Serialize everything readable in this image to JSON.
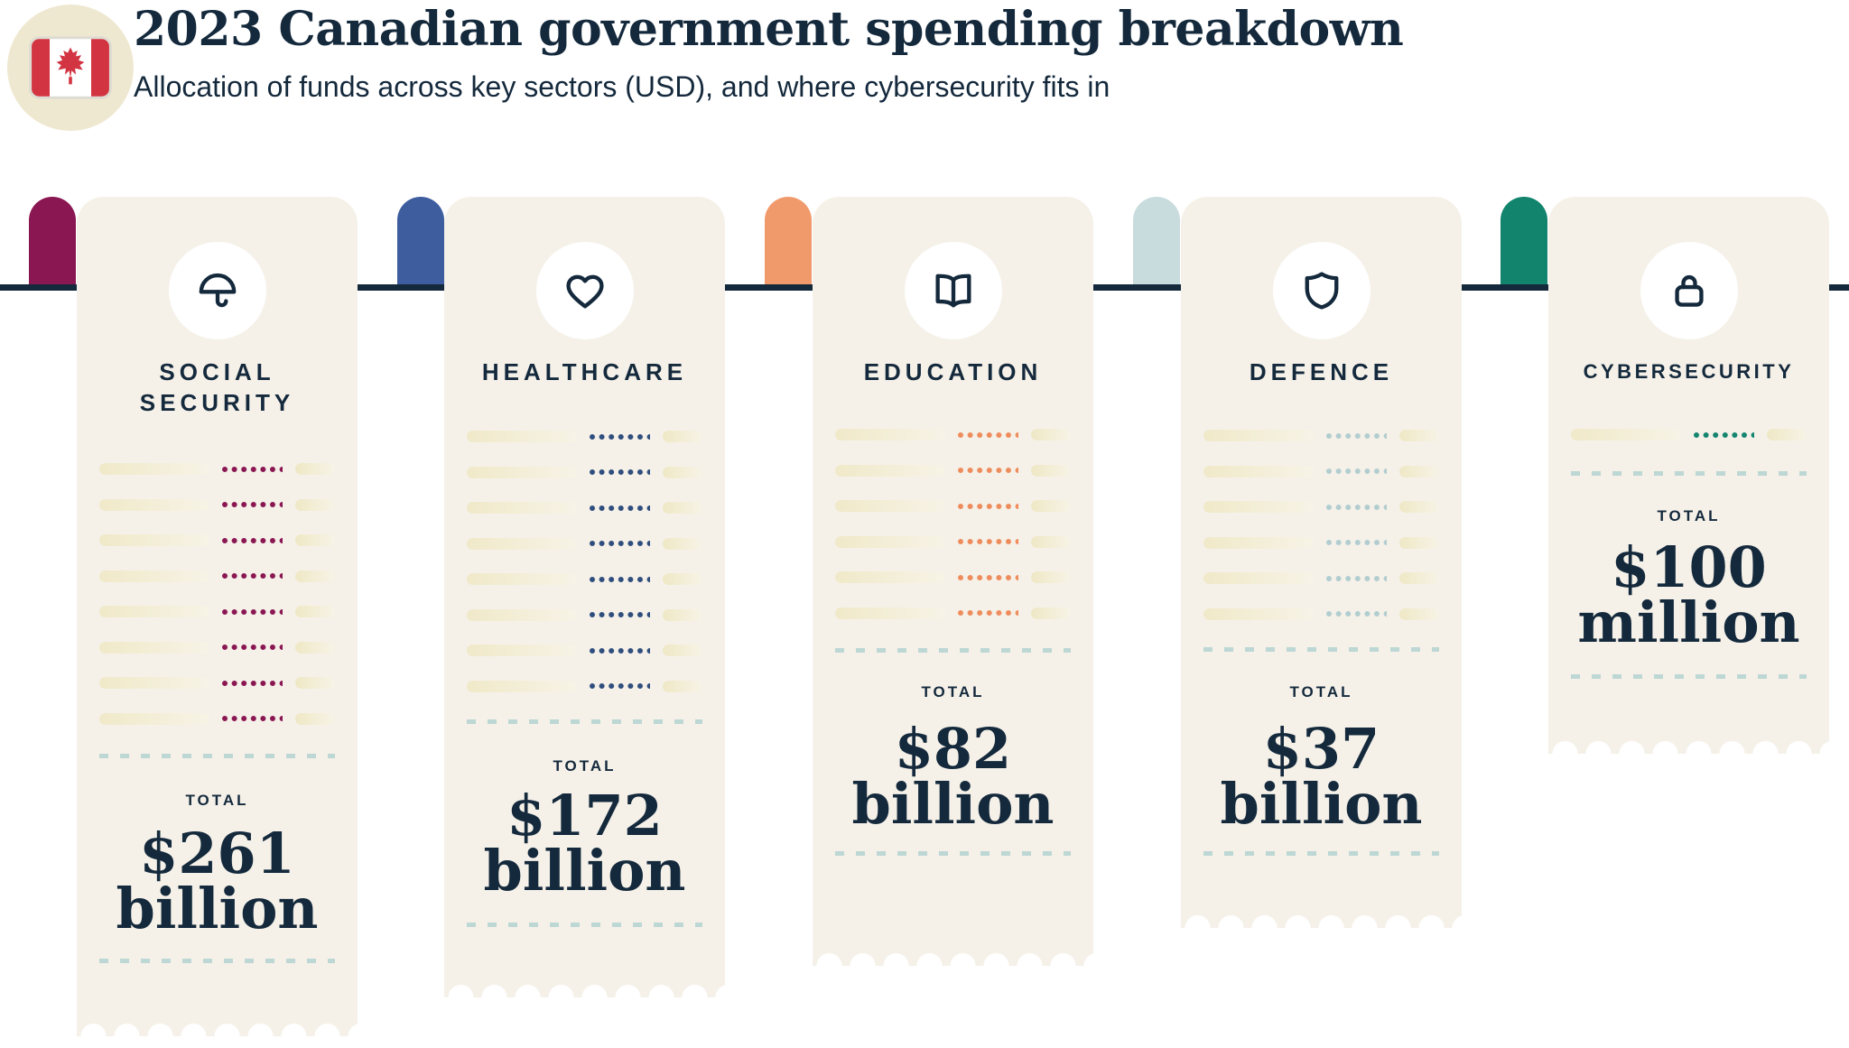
{
  "header": {
    "title": "2023 Canadian government spending breakdown",
    "subtitle": "Allocation of funds across key sectors (USD), and where cybersecurity fits in",
    "badge_icon": "canada-flag-icon"
  },
  "colors": {
    "navy_text": "#14293C",
    "card_cream": "#F5F1E9",
    "badge_beige": "#EFE8D1",
    "flag_red": "#D23441",
    "baseline": "#14293C",
    "dashed_divider": "#BDD7D4",
    "line_pill": "#F0E9C9"
  },
  "cards": [
    {
      "name_lines": [
        "SOCIAL",
        "SECURITY"
      ],
      "icon": "umbrella-icon",
      "tab_color": "#8A1652",
      "dot_color": "#8A1652",
      "line_rows": 8,
      "total_label": "TOTAL",
      "amount": "$261",
      "unit": "billion"
    },
    {
      "name_lines": [
        "HEALTHCARE"
      ],
      "icon": "heart-icon",
      "tab_color": "#3D5D9F",
      "dot_color": "#2F4E7D",
      "line_rows": 8,
      "total_label": "TOTAL",
      "amount": "$172",
      "unit": "billion"
    },
    {
      "name_lines": [
        "EDUCATION"
      ],
      "icon": "open-book-icon",
      "tab_color": "#F09A6C",
      "dot_color": "#EE8C5C",
      "line_rows": 6,
      "total_label": "TOTAL",
      "amount": "$82",
      "unit": "billion"
    },
    {
      "name_lines": [
        "DEFENCE"
      ],
      "icon": "shield-icon",
      "tab_color": "#C8DBDD",
      "dot_color": "#B2CDCF",
      "line_rows": 6,
      "total_label": "TOTAL",
      "amount": "$37",
      "unit": "billion"
    },
    {
      "name_lines": [
        "CYBERSECURITY"
      ],
      "icon": "lock-icon",
      "tab_color": "#12836C",
      "dot_color": "#15846F",
      "line_rows": 1,
      "total_label": "TOTAL",
      "amount": "$100",
      "unit": "million"
    }
  ],
  "chart_data": {
    "type": "bar",
    "title": "2023 Canadian government spending breakdown",
    "subtitle": "Allocation of funds across key sectors (USD), and where cybersecurity fits in",
    "categories": [
      "Social Security",
      "Healthcare",
      "Education",
      "Defence",
      "Cybersecurity"
    ],
    "values_usd_billions": [
      261,
      172,
      82,
      37,
      0.1
    ],
    "value_labels": [
      "$261 billion",
      "$172 billion",
      "$82 billion",
      "$37 billion",
      "$100 million"
    ],
    "unit": "USD",
    "legend_position": "none",
    "grid": false,
    "note": "Receipt length encodes relative spending; each receipt hangs from a shared baseline"
  }
}
